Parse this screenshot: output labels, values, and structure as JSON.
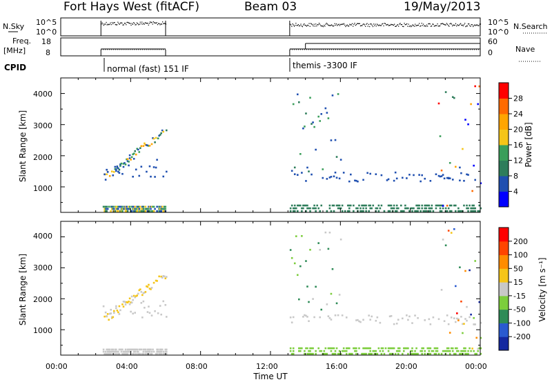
{
  "header": {
    "station": "Fort Hays West (fitACF)",
    "beam": "Beam 03",
    "date": "19/May/2013"
  },
  "panels": {
    "nsky_label": "N.Sky",
    "nsky_ticks": [
      "10^5",
      "10^0"
    ],
    "nsearch_label": "N.Search",
    "nsearch_ticks": [
      "10^5",
      "10^0"
    ],
    "freq_label": "Freq.",
    "freq_unit": "[MHz]",
    "freq_ticks": [
      "18",
      "8"
    ],
    "nave_label": "Nave",
    "nave_ticks": [
      "60",
      "0"
    ],
    "cpid_label": "CPID",
    "cpid_segments": [
      {
        "label": "normal (fast) 151 IF",
        "start_hour": 2.3,
        "end_hour": 6.0
      },
      {
        "label": "themis -3300 IF",
        "start_hour": 13.1,
        "end_hour": 24.0
      }
    ]
  },
  "colorbars": {
    "power": {
      "title": "Power [dB]",
      "ticks": [
        "28",
        "24",
        "20",
        "16",
        "12",
        "8",
        "4"
      ],
      "colors": [
        "#0000ff",
        "#1f4fb0",
        "#2e7d5b",
        "#3a9e5a",
        "#f5c518",
        "#ffa500",
        "#ff6a00",
        "#ff0000"
      ]
    },
    "velocity": {
      "title": "Velocity [m s⁻¹]",
      "ticks": [
        "200",
        "100",
        "50",
        "15",
        "-15",
        "-50",
        "-100",
        "-200"
      ],
      "colors": [
        "#1428a0",
        "#2a5ad0",
        "#2e8b57",
        "#7ccd3c",
        "#c8c8c8",
        "#f5c518",
        "#ff8c00",
        "#ff4500",
        "#ff0000"
      ]
    }
  },
  "axes": {
    "xlabel": "Time UT",
    "x_ticks": [
      "00:00",
      "04:00",
      "08:00",
      "12:00",
      "16:00",
      "20:00",
      "00:00"
    ],
    "ylabel": "Slant Range [km]",
    "y_ticks": [
      "4000",
      "3000",
      "2000",
      "1000"
    ]
  },
  "chart_data": [
    {
      "type": "heatmap",
      "title": "Power",
      "xlabel": "Time UT",
      "ylabel": "Slant Range [km]",
      "xlim": [
        0,
        24
      ],
      "ylim": [
        180,
        4500
      ],
      "colorbar": "Power [dB]",
      "observed_intervals_hours": [
        [
          2.3,
          6.0
        ],
        [
          13.1,
          24.0
        ]
      ]
    },
    {
      "type": "heatmap",
      "title": "Velocity",
      "xlabel": "Time UT",
      "ylabel": "Slant Range [km]",
      "xlim": [
        0,
        24
      ],
      "ylim": [
        180,
        4500
      ],
      "colorbar": "Velocity [m s⁻¹]",
      "observed_intervals_hours": [
        [
          2.3,
          6.0
        ],
        [
          13.1,
          24.0
        ]
      ]
    }
  ]
}
